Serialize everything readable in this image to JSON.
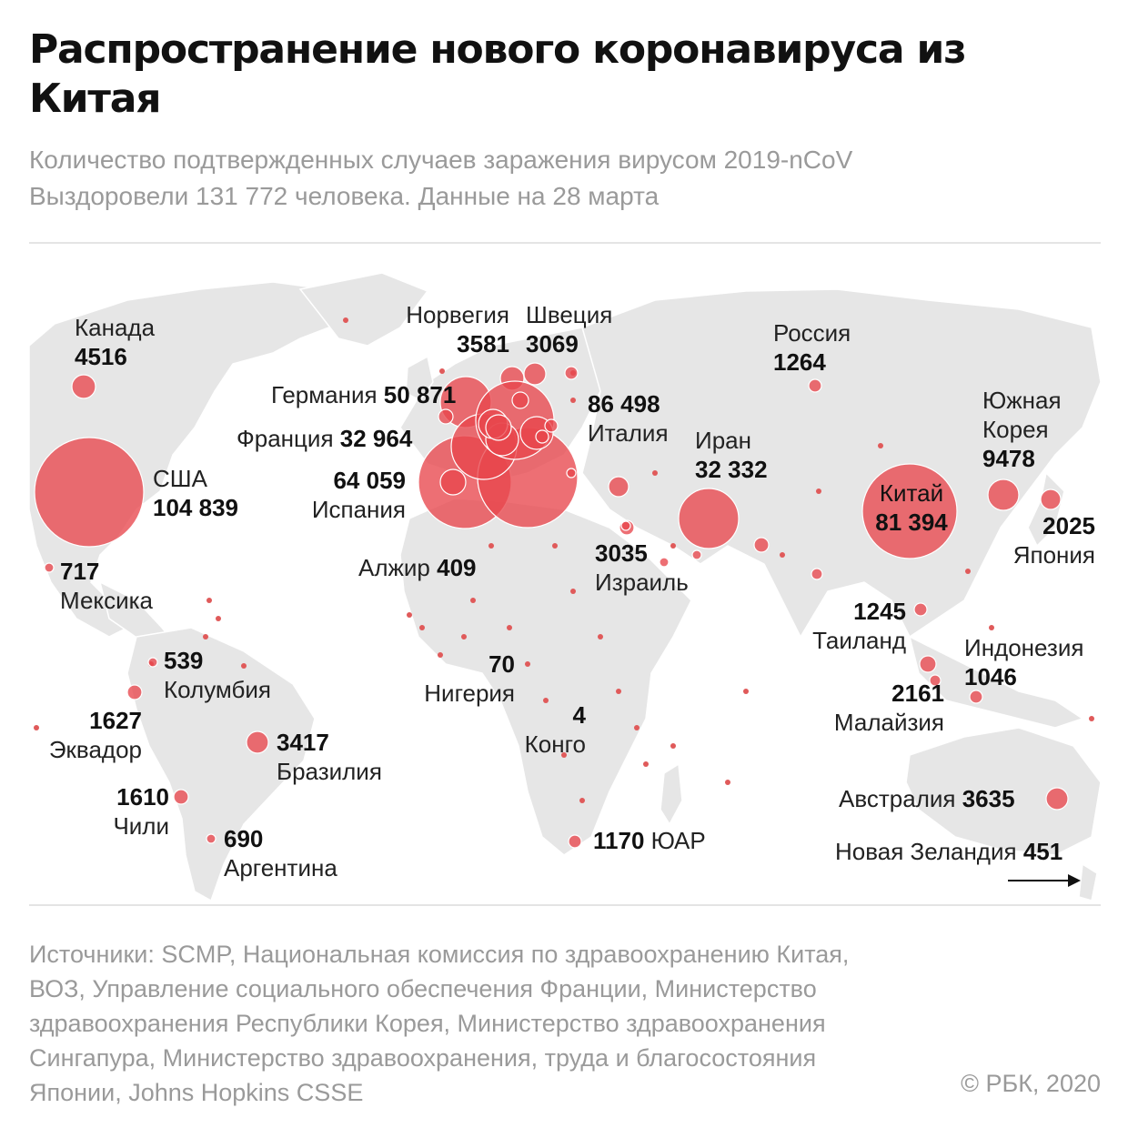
{
  "title": "Распространение нового коронавируса из Китая",
  "subtitle": {
    "line1": "Количество подтвержденных случаев заражения вирусом 2019-nCoV",
    "line2": "Выздоровели 131 772 человека. Данные на 28 марта"
  },
  "countries": {
    "canada": {
      "name": "Канада",
      "cases": "4516"
    },
    "usa": {
      "name": "США",
      "cases": "104 839"
    },
    "mexico": {
      "name": "Мексика",
      "cases": "717"
    },
    "colombia": {
      "name": "Колумбия",
      "cases": "539"
    },
    "ecuador": {
      "name": "Эквадор",
      "cases": "1627"
    },
    "brazil": {
      "name": "Бразилия",
      "cases": "3417"
    },
    "chile": {
      "name": "Чили",
      "cases": "1610"
    },
    "argentina": {
      "name": "Аргентина",
      "cases": "690"
    },
    "norway": {
      "name": "Норвегия",
      "cases": "3581"
    },
    "sweden": {
      "name": "Швеция",
      "cases": "3069"
    },
    "germany": {
      "name": "Германия",
      "cases": "50 871"
    },
    "france": {
      "name": "Франция",
      "cases": "32 964"
    },
    "spain": {
      "name": "Испания",
      "cases": "64 059"
    },
    "italy": {
      "name": "Италия",
      "cases": "86 498"
    },
    "algeria": {
      "name": "Алжир",
      "cases": "409"
    },
    "nigeria": {
      "name": "Нигерия",
      "cases": "70"
    },
    "congo": {
      "name": "Конго",
      "cases": "4"
    },
    "south_africa": {
      "name": "ЮАР",
      "cases": "1170"
    },
    "israel": {
      "name": "Израиль",
      "cases": "3035"
    },
    "iran": {
      "name": "Иран",
      "cases": "32 332"
    },
    "russia": {
      "name": "Россия",
      "cases": "1264"
    },
    "china": {
      "name": "Китай",
      "cases": "81 394"
    },
    "south_korea": {
      "name1": "Южная",
      "name2": "Корея",
      "cases": "9478"
    },
    "japan": {
      "name": "Япония",
      "cases": "2025"
    },
    "thailand": {
      "name": "Таиланд",
      "cases": "1245"
    },
    "malaysia": {
      "name": "Малайзия",
      "cases": "2161"
    },
    "indonesia": {
      "name": "Индонезия",
      "cases": "1046"
    },
    "australia": {
      "name": "Австралия",
      "cases": "3635"
    },
    "new_zealand": {
      "name": "Новая Зеландия",
      "cases": "451"
    }
  },
  "colors": {
    "bubble": "#e8464d",
    "land": "#e6e6e6",
    "small_dot": "#e05a5a"
  },
  "source": {
    "line1": "Источники: SCMP, Национальная комиссия по здравоохранению Китая,",
    "line2": "ВОЗ, Управление социального обеспечения Франции, Министерство",
    "line3": "здравоохранения Республики Корея, Министерство здравоохранения",
    "line4": "Сингапура, Министерство здравоохранения, труда и благосостояния",
    "line5": "Японии, Johns Hopkins CSSE"
  },
  "copyright": "© РБК, 2020"
}
